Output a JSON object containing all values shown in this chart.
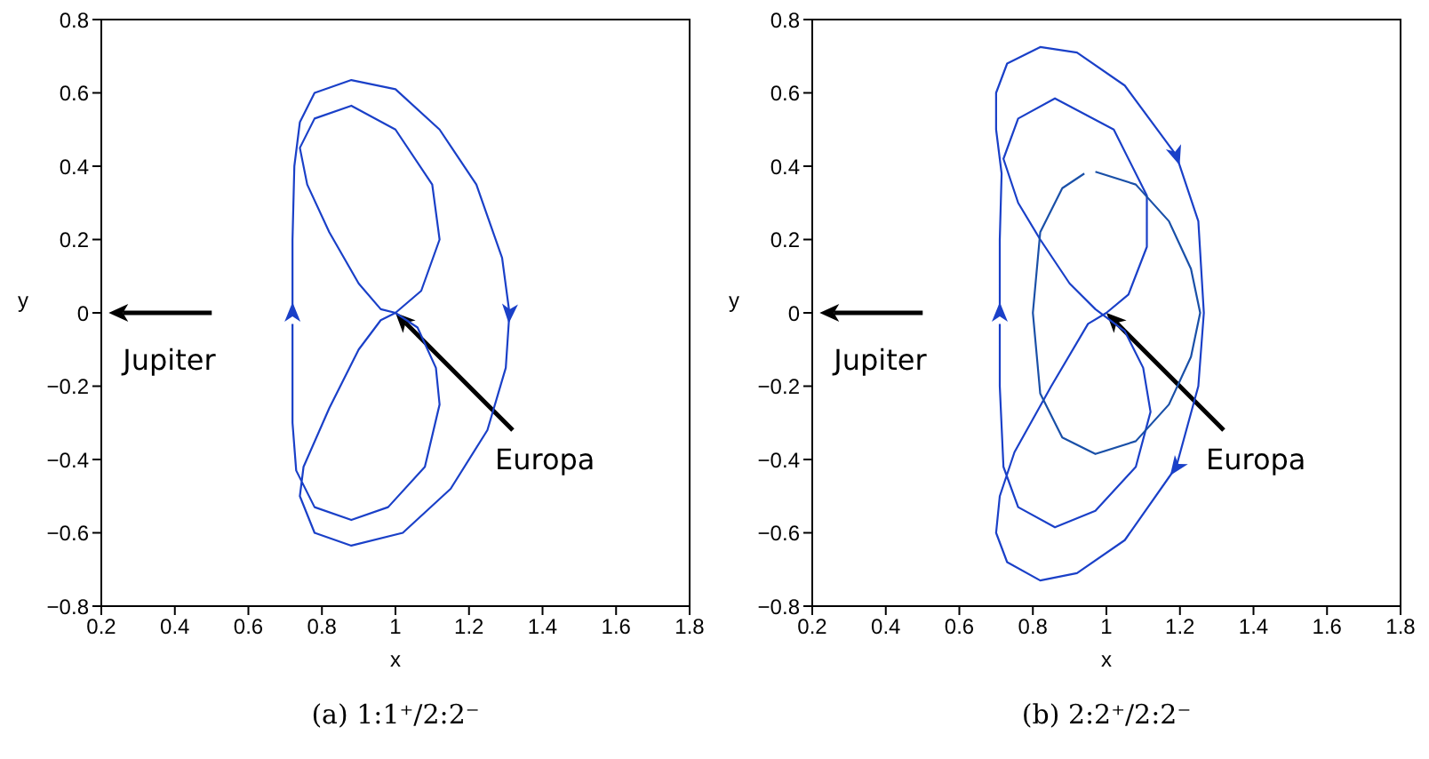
{
  "chart_data": [
    {
      "type": "line",
      "title": "(a) 1:1⁺/2:2⁻",
      "xlabel": "x",
      "ylabel": "y",
      "xlim": [
        0.2,
        1.8
      ],
      "ylim": [
        -0.8,
        0.8
      ],
      "xticks": [
        0.2,
        0.4,
        0.6,
        0.8,
        1,
        1.2,
        1.4,
        1.6,
        1.8
      ],
      "yticks": [
        -0.8,
        -0.6,
        -0.4,
        -0.2,
        0,
        0.2,
        0.4,
        0.6,
        0.8
      ],
      "grid": false,
      "legend": false,
      "marker": "none",
      "line_style": "solid",
      "annotations": [
        "Jupiter",
        {
          "text": "Europa",
          "x": 1.0,
          "y": 0
        }
      ],
      "series": [
        {
          "color": "#1a40c8",
          "x": [
            0.72,
            0.72,
            0.725,
            0.74,
            0.78,
            0.88,
            1.0,
            1.12,
            1.22,
            1.29,
            1.31,
            1.3,
            1.25,
            1.15,
            1.02,
            0.88,
            0.78,
            0.74,
            0.75,
            0.82,
            0.9,
            0.96,
            1.0,
            1.07,
            1.12,
            1.1,
            1.0,
            0.88,
            0.78,
            0.74,
            0.76,
            0.82,
            0.9,
            0.96,
            1.0,
            1.06,
            1.11,
            1.12,
            1.08,
            0.98,
            0.88,
            0.78,
            0.73,
            0.72,
            0.72,
            0.72
          ],
          "values": [
            0,
            0.2,
            0.4,
            0.52,
            0.6,
            0.635,
            0.61,
            0.5,
            0.35,
            0.15,
            0,
            -0.15,
            -0.32,
            -0.48,
            -0.6,
            -0.635,
            -0.6,
            -0.5,
            -0.42,
            -0.26,
            -0.1,
            -0.02,
            0,
            0.06,
            0.2,
            0.35,
            0.5,
            0.565,
            0.53,
            0.45,
            0.35,
            0.22,
            0.08,
            0.01,
            0,
            -0.04,
            -0.15,
            -0.25,
            -0.42,
            -0.53,
            -0.565,
            -0.53,
            -0.43,
            -0.3,
            -0.1,
            -0.03
          ]
        }
      ]
    },
    {
      "type": "line",
      "title": "(b) 2:2⁺/2:2⁻",
      "xlabel": "x",
      "ylabel": "y",
      "xlim": [
        0.2,
        1.8
      ],
      "ylim": [
        -0.8,
        0.8
      ],
      "xticks": [
        0.2,
        0.4,
        0.6,
        0.8,
        1,
        1.2,
        1.4,
        1.6,
        1.8
      ],
      "yticks": [
        -0.8,
        -0.6,
        -0.4,
        -0.2,
        0,
        0.2,
        0.4,
        0.6,
        0.8
      ],
      "grid": false,
      "legend": false,
      "marker": "none",
      "line_style": "solid",
      "annotations": [
        "Jupiter",
        {
          "text": "Europa",
          "x": 1.0,
          "y": 0
        }
      ],
      "series": [
        {
          "color": "#1a40c8",
          "x": [
            0.71,
            0.71,
            0.715,
            0.7,
            0.7,
            0.73,
            0.82,
            0.92,
            1.05,
            1.19,
            1.25,
            1.265,
            1.25,
            1.19,
            1.05,
            0.92,
            0.82,
            0.73,
            0.7,
            0.71,
            0.75,
            0.85,
            0.95,
            1.0,
            1.06,
            1.11,
            1.11,
            1.02,
            0.86,
            0.76,
            0.72,
            0.76,
            0.82,
            0.9,
            0.97,
            1.05,
            1.1,
            1.12,
            1.08,
            0.97,
            0.86,
            0.76,
            0.72,
            0.71,
            0.71
          ],
          "values": [
            0,
            0.2,
            0.38,
            0.5,
            0.6,
            0.68,
            0.725,
            0.71,
            0.62,
            0.43,
            0.25,
            0,
            -0.2,
            -0.42,
            -0.62,
            -0.71,
            -0.73,
            -0.68,
            -0.6,
            -0.5,
            -0.38,
            -0.2,
            -0.03,
            0,
            0.05,
            0.18,
            0.32,
            0.5,
            0.585,
            0.53,
            0.42,
            0.3,
            0.2,
            0.08,
            0.01,
            -0.05,
            -0.15,
            -0.27,
            -0.42,
            -0.54,
            -0.585,
            -0.53,
            -0.42,
            -0.2,
            -0.03
          ]
        },
        {
          "color": "#1a50a8",
          "x": [
            0.97,
            1.08,
            1.17,
            1.23,
            1.255,
            1.23,
            1.17,
            1.08,
            0.97,
            0.88,
            0.82,
            0.8,
            0.82,
            0.88,
            0.94
          ],
          "values": [
            0.385,
            0.35,
            0.25,
            0.12,
            0,
            -0.12,
            -0.25,
            -0.35,
            -0.385,
            -0.34,
            -0.22,
            0,
            0.22,
            0.34,
            0.38
          ]
        }
      ]
    }
  ]
}
